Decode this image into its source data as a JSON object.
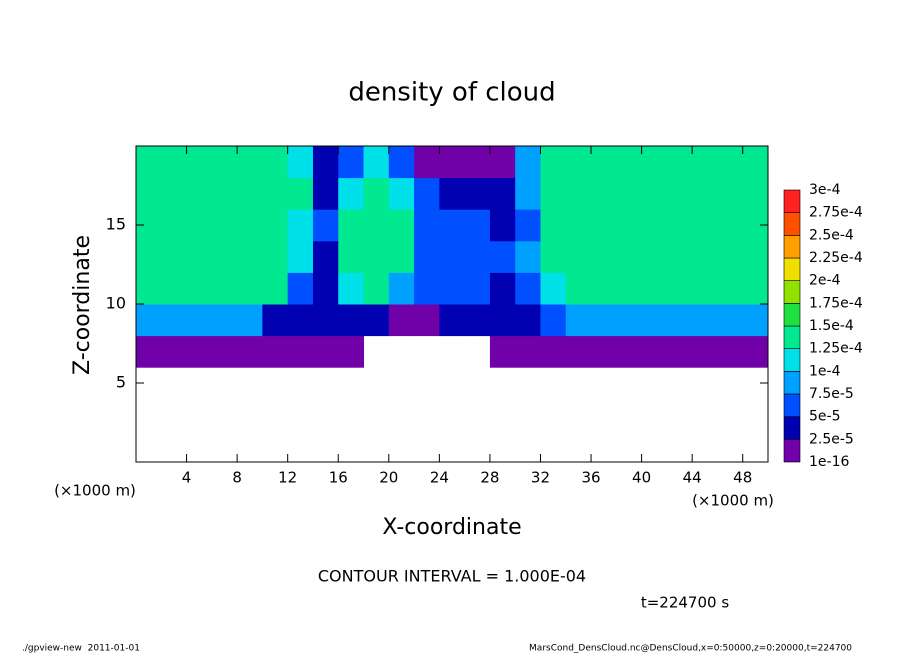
{
  "chart_data": {
    "type": "heatmap",
    "title": "density of cloud",
    "x_label": "X-coordinate",
    "y_label": "Z-coordinate",
    "x_unit_label": "(×1000 m)",
    "y_unit_label": "(×1000 m)",
    "xlim": [
      0,
      50
    ],
    "ylim": [
      0,
      20
    ],
    "xticks": [
      4,
      8,
      12,
      16,
      20,
      24,
      28,
      32,
      36,
      40,
      44,
      48
    ],
    "yticks": [
      5,
      10,
      15
    ],
    "x": [
      1,
      3,
      5,
      7,
      9,
      11,
      13,
      15,
      17,
      19,
      21,
      23,
      25,
      27,
      29,
      31,
      33,
      35,
      37,
      39,
      41,
      43,
      45,
      47,
      49
    ],
    "z": [
      1,
      3,
      5,
      7,
      9,
      11,
      13,
      15,
      17,
      19
    ],
    "values": [
      [
        null,
        null,
        null,
        null,
        null,
        null,
        null,
        null,
        null,
        null,
        null,
        null,
        null,
        null,
        null,
        null,
        null,
        null,
        null,
        null,
        null,
        null,
        null,
        null,
        null
      ],
      [
        null,
        null,
        null,
        null,
        null,
        null,
        null,
        null,
        null,
        null,
        null,
        null,
        null,
        null,
        null,
        null,
        null,
        null,
        null,
        null,
        null,
        null,
        null,
        null,
        null
      ],
      [
        null,
        null,
        null,
        null,
        null,
        null,
        null,
        null,
        null,
        null,
        null,
        null,
        null,
        null,
        null,
        null,
        null,
        null,
        null,
        null,
        null,
        null,
        null,
        null,
        null
      ],
      [
        2e-05,
        2e-05,
        2e-05,
        2e-05,
        2e-05,
        2e-05,
        2e-05,
        2e-05,
        1e-05,
        null,
        null,
        null,
        null,
        null,
        1e-05,
        1e-05,
        2e-05,
        2e-05,
        2e-05,
        2e-05,
        2e-05,
        2e-05,
        2e-05,
        2e-05,
        2e-05
      ],
      [
        8e-05,
        8e-05,
        8e-05,
        8e-05,
        8e-05,
        4e-05,
        4e-05,
        4e-05,
        3e-05,
        3e-05,
        2e-05,
        2e-05,
        3e-05,
        3e-05,
        3e-05,
        4e-05,
        5e-05,
        8e-05,
        8e-05,
        8e-05,
        8e-05,
        8e-05,
        8e-05,
        8e-05,
        8e-05
      ],
      [
        0.00014,
        0.00014,
        0.00014,
        0.00014,
        0.00014,
        0.00014,
        6e-05,
        4e-05,
        0.0001,
        0.00013,
        8e-05,
        5e-05,
        6e-05,
        5e-05,
        4e-05,
        6e-05,
        0.00012,
        0.00014,
        0.00014,
        0.00014,
        0.00014,
        0.00014,
        0.00014,
        0.00014,
        0.00014
      ],
      [
        0.00014,
        0.00014,
        0.00014,
        0.00014,
        0.00014,
        0.00014,
        0.0001,
        4e-05,
        0.00013,
        0.00014,
        0.00013,
        6e-05,
        5e-05,
        7e-05,
        5e-05,
        8e-05,
        0.00014,
        0.00014,
        0.00014,
        0.00014,
        0.00014,
        0.00014,
        0.00014,
        0.00014,
        0.00014
      ],
      [
        0.00014,
        0.00014,
        0.00014,
        0.00014,
        0.00014,
        0.00014,
        0.00012,
        5e-05,
        0.00013,
        0.00014,
        0.00013,
        6e-05,
        5e-05,
        6e-05,
        4e-05,
        6e-05,
        0.00013,
        0.00014,
        0.00014,
        0.00014,
        0.00014,
        0.00014,
        0.00014,
        0.00014,
        0.00014
      ],
      [
        0.00014,
        0.00014,
        0.00014,
        0.00014,
        0.00014,
        0.00014,
        0.00013,
        4e-05,
        0.00012,
        0.00014,
        0.00012,
        5e-05,
        4e-05,
        3e-05,
        3e-05,
        9e-05,
        0.00014,
        0.00014,
        0.00014,
        0.00014,
        0.00014,
        0.00014,
        0.00014,
        0.00014,
        0.00014
      ],
      [
        0.00014,
        0.00014,
        0.00014,
        0.00014,
        0.00014,
        0.00014,
        0.00011,
        4e-05,
        6e-05,
        0.0001,
        5e-05,
        2e-05,
        1e-05,
        1e-05,
        2e-05,
        8e-05,
        0.00013,
        0.00014,
        0.00014,
        0.00014,
        0.00014,
        0.00014,
        0.00014,
        0.00014,
        0.00014
      ]
    ],
    "colorbar": {
      "levels": [
        {
          "value": 1e-16,
          "label": "1e-16"
        },
        {
          "value": 2.5e-05,
          "label": "2.5e-5"
        },
        {
          "value": 5e-05,
          "label": "5e-5"
        },
        {
          "value": 7.5e-05,
          "label": "7.5e-5"
        },
        {
          "value": 0.0001,
          "label": "1e-4"
        },
        {
          "value": 0.000125,
          "label": "1.25e-4"
        },
        {
          "value": 0.00015,
          "label": "1.5e-4"
        },
        {
          "value": 0.000175,
          "label": "1.75e-4"
        },
        {
          "value": 0.0002,
          "label": "2e-4"
        },
        {
          "value": 0.000225,
          "label": "2.25e-4"
        },
        {
          "value": 0.00025,
          "label": "2.5e-4"
        },
        {
          "value": 0.000275,
          "label": "2.75e-4"
        },
        {
          "value": 0.0003,
          "label": "3e-4"
        }
      ],
      "colors": [
        "#7000a8",
        "#0000b0",
        "#0050ff",
        "#00a0ff",
        "#00e0e8",
        "#00e890",
        "#20e040",
        "#90e000",
        "#f0e000",
        "#ffa000",
        "#ff5000",
        "#ff2020",
        "#ff8c8c"
      ]
    },
    "contour_interval": "CONTOUR INTERVAL = 1.000E-04",
    "time_label": "t=224700 s",
    "footer_left": "./gpview-new  2011-01-01",
    "footer_right": "MarsCond_DensCloud.nc@DensCloud,x=0:50000,z=0:20000,t=224700"
  }
}
